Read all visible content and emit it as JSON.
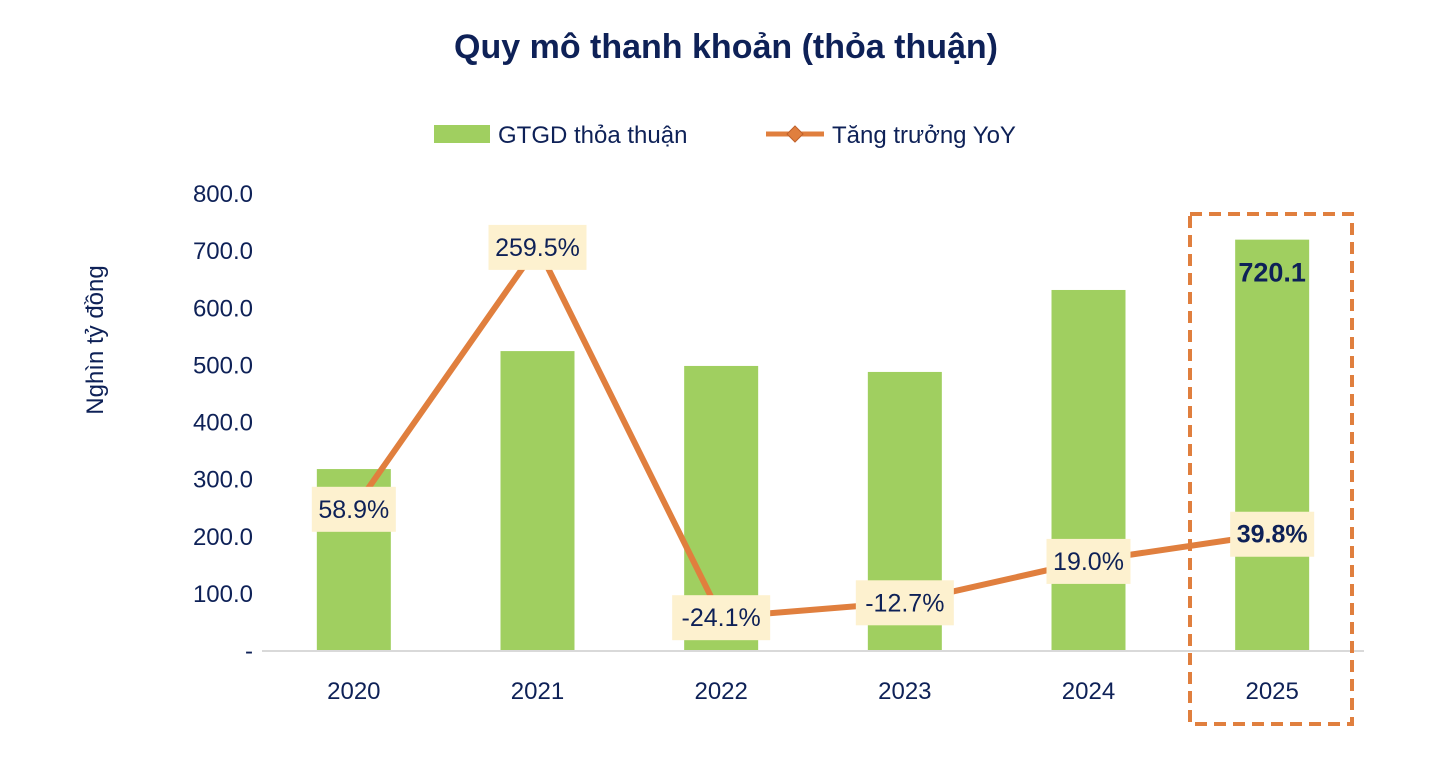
{
  "chart_data": {
    "type": "bar+line",
    "title": "Quy mô thanh khoản (thỏa thuận)",
    "ylabel": "Nghìn tỷ đồng",
    "xlabel": "",
    "categories": [
      "2020",
      "2021",
      "2022",
      "2023",
      "2024",
      "2025"
    ],
    "ylim": [
      0,
      800
    ],
    "y_ticks": [
      "-",
      "100.0",
      "200.0",
      "300.0",
      "400.0",
      "500.0",
      "600.0",
      "700.0",
      "800.0"
    ],
    "secondary_axis_hidden": true,
    "secondary_ylim": [
      -50,
      300
    ],
    "legend_position": "top",
    "grid": false,
    "series": [
      {
        "name": "GTGD thỏa thuận",
        "type": "bar",
        "color": "#a0cf60",
        "values": [
          318.5,
          525.0,
          499.0,
          488.5,
          632.0,
          720.1
        ],
        "data_labels": [
          "",
          "",
          "",
          "",
          "",
          "720.1"
        ]
      },
      {
        "name": "Tăng trưởng YoY",
        "type": "line",
        "color": "#e07f3e",
        "unit": "%",
        "values": [
          58.9,
          259.5,
          -24.1,
          -12.7,
          19.0,
          39.8
        ],
        "data_labels": [
          "58.9%",
          "259.5%",
          "-24.1%",
          "-12.7%",
          "19.0%",
          "39.8%"
        ]
      }
    ],
    "highlight": {
      "category": "2025",
      "style": "dashed-box",
      "color": "#e07f3e"
    },
    "label_box_color": "#fdf1cf",
    "text_color": "#0e2157"
  }
}
